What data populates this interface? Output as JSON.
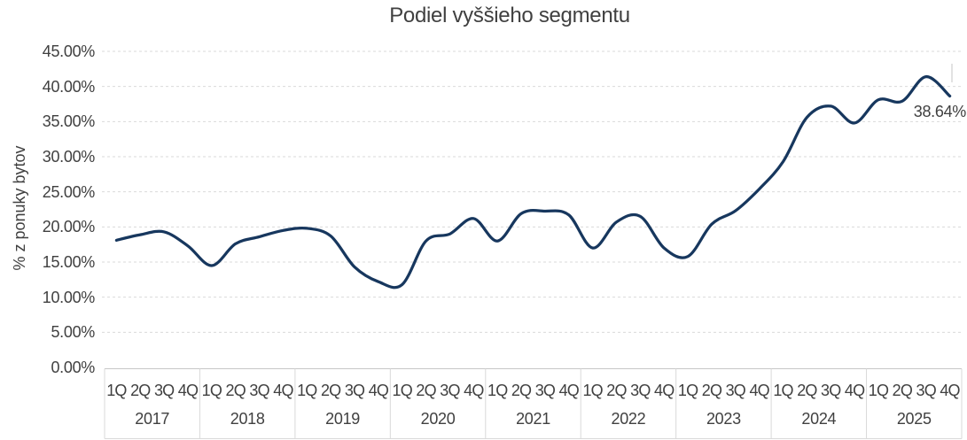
{
  "chart_data": {
    "type": "line",
    "title": "Podiel vyššieho segmentu",
    "xlabel": "",
    "ylabel": "% z ponuky bytov",
    "legend_position": "none",
    "grid": "horizontal-dashed",
    "smooth": true,
    "ylim": [
      0,
      45
    ],
    "ytick_step": 5,
    "ytick_labels": [
      "0.00%",
      "5.00%",
      "10.00%",
      "15.00%",
      "20.00%",
      "25.00%",
      "30.00%",
      "35.00%",
      "40.00%",
      "45.00%"
    ],
    "years": [
      "2017",
      "2018",
      "2019",
      "2020",
      "2021",
      "2022",
      "2023",
      "2024",
      "2025"
    ],
    "quarter_labels": [
      "1Q",
      "2Q",
      "3Q",
      "4Q"
    ],
    "values": [
      18.1,
      18.9,
      19.3,
      17.3,
      14.5,
      17.6,
      18.6,
      19.5,
      19.8,
      18.7,
      14.3,
      12.2,
      11.8,
      18.0,
      19.0,
      21.2,
      18.0,
      21.9,
      22.25,
      21.7,
      17.0,
      20.7,
      21.5,
      17.0,
      15.8,
      20.4,
      22.3,
      25.4,
      29.3,
      35.6,
      37.2,
      34.8,
      38.1,
      37.9,
      41.4,
      38.64
    ],
    "last_value_label": "38.64%",
    "colors": {
      "line": "#17375e",
      "gridline": "#d9d9d9",
      "axis_line": "#c6c6c6",
      "separator": "#d9d9d9",
      "text": "#404040"
    }
  }
}
